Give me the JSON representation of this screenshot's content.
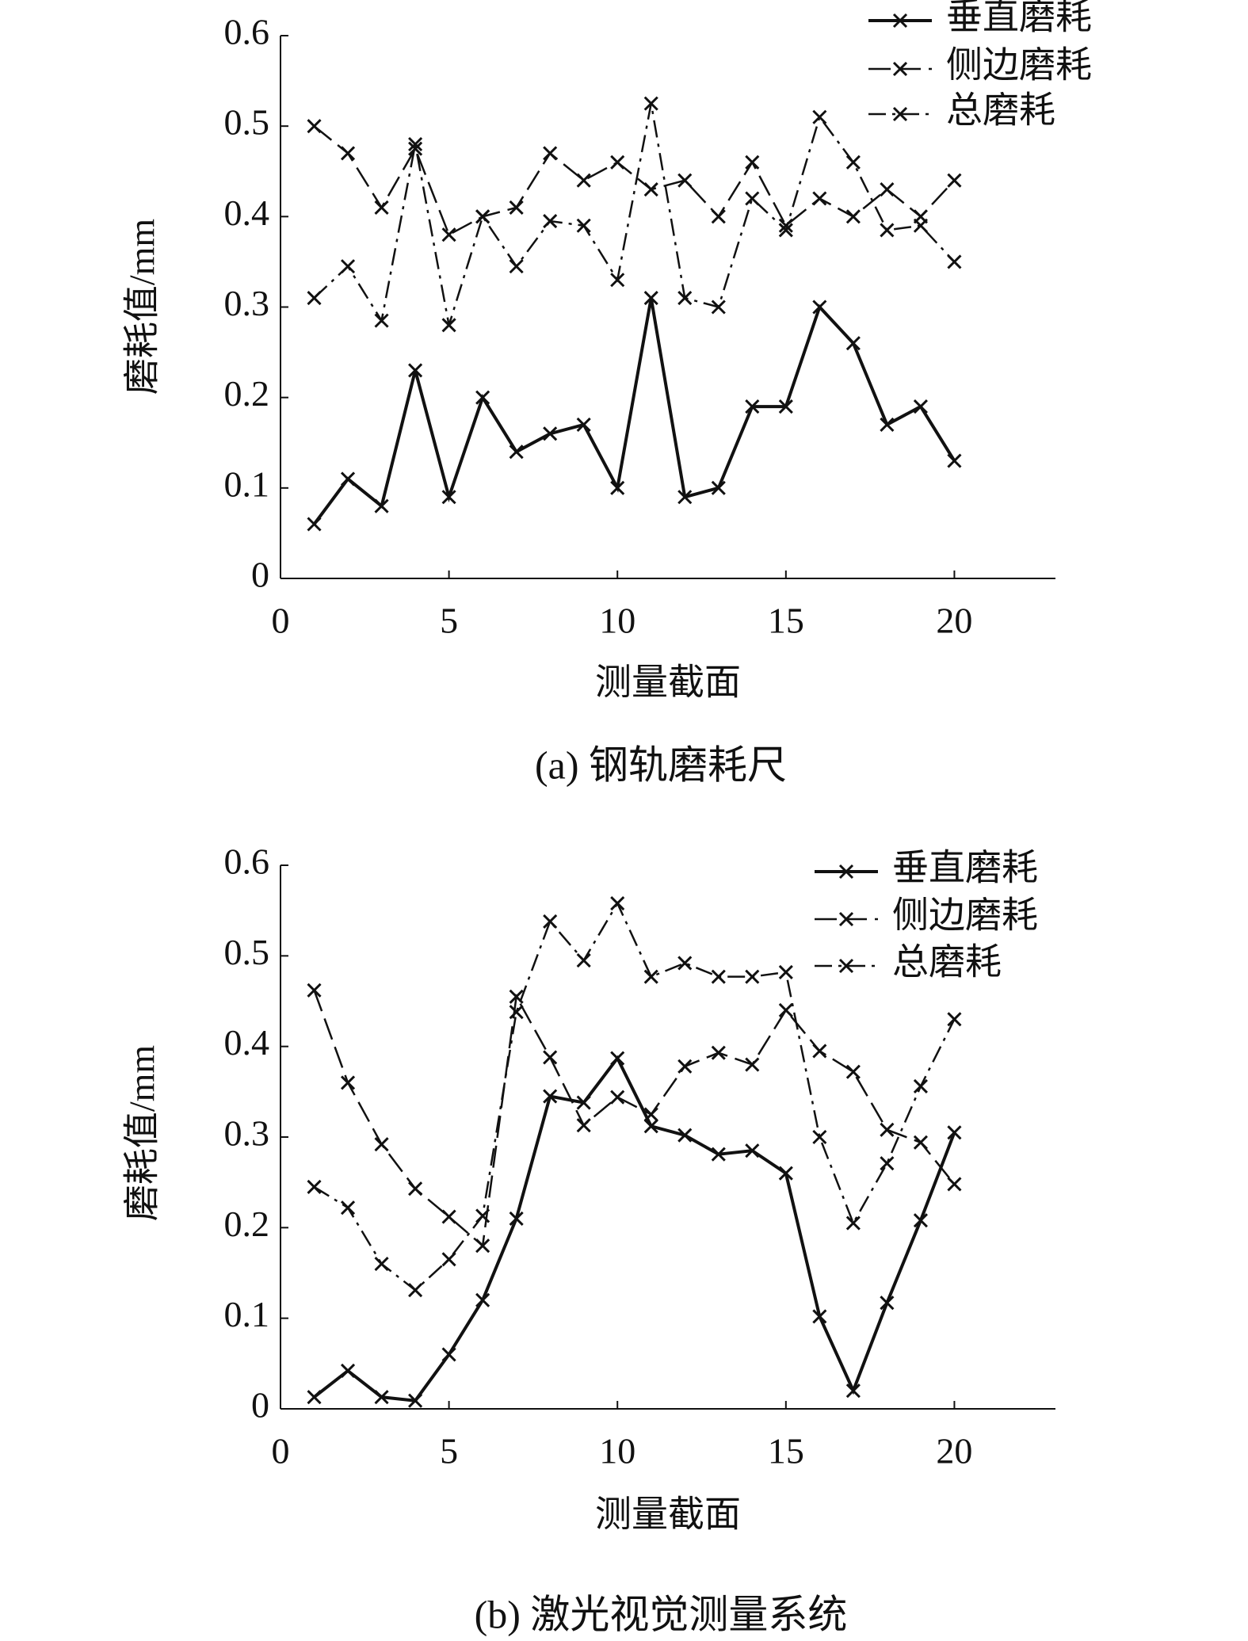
{
  "chart_data": [
    {
      "type": "line",
      "caption": "(a) 钢轨磨耗尺",
      "xlabel": "测量截面",
      "ylabel": "磨耗值/mm",
      "x": [
        1,
        2,
        3,
        4,
        5,
        6,
        7,
        8,
        9,
        10,
        11,
        12,
        13,
        14,
        15,
        16,
        17,
        18,
        19,
        20
      ],
      "xlim": [
        0,
        23
      ],
      "xticks": [
        0,
        5,
        10,
        15,
        20
      ],
      "ylim": [
        0,
        0.6
      ],
      "yticks": [
        0,
        0.1,
        0.2,
        0.3,
        0.4,
        0.5,
        0.6
      ],
      "series": [
        {
          "name": "垂直磨耗",
          "color": "#111111",
          "line_style": "solid",
          "values": [
            0.06,
            0.11,
            0.08,
            0.23,
            0.09,
            0.2,
            0.14,
            0.16,
            0.17,
            0.1,
            0.31,
            0.09,
            0.1,
            0.19,
            0.19,
            0.3,
            0.26,
            0.17,
            0.19,
            0.13
          ]
        },
        {
          "name": "侧边磨耗",
          "color": "#111111",
          "line_style": "dashed",
          "values": [
            0.5,
            0.47,
            0.41,
            0.475,
            0.38,
            0.4,
            0.41,
            0.47,
            0.44,
            0.46,
            0.43,
            0.44,
            0.4,
            0.46,
            0.39,
            0.42,
            0.4,
            0.43,
            0.4,
            0.44
          ]
        },
        {
          "name": "总磨耗",
          "color": "#111111",
          "line_style": "dashdot",
          "values": [
            0.31,
            0.345,
            0.285,
            0.48,
            0.28,
            0.4,
            0.345,
            0.395,
            0.39,
            0.33,
            0.525,
            0.31,
            0.3,
            0.42,
            0.385,
            0.51,
            0.46,
            0.385,
            0.39,
            0.35
          ]
        }
      ]
    },
    {
      "type": "line",
      "caption": "(b) 激光视觉测量系统",
      "xlabel": "测量截面",
      "ylabel": "磨耗值/mm",
      "x": [
        1,
        2,
        3,
        4,
        5,
        6,
        7,
        8,
        9,
        10,
        11,
        12,
        13,
        14,
        15,
        16,
        17,
        18,
        19,
        20
      ],
      "xlim": [
        0,
        23
      ],
      "xticks": [
        0,
        5,
        10,
        15,
        20
      ],
      "ylim": [
        0,
        0.6
      ],
      "yticks": [
        0,
        0.1,
        0.2,
        0.3,
        0.4,
        0.5,
        0.6
      ],
      "series": [
        {
          "name": "垂直磨耗",
          "color": "#111111",
          "line_style": "solid",
          "values": [
            0.013,
            0.042,
            0.013,
            0.009,
            0.06,
            0.12,
            0.21,
            0.345,
            0.338,
            0.387,
            0.312,
            0.302,
            0.281,
            0.285,
            0.26,
            0.102,
            0.02,
            0.117,
            0.208,
            0.305
          ]
        },
        {
          "name": "侧边磨耗",
          "color": "#111111",
          "line_style": "dashed",
          "values": [
            0.462,
            0.36,
            0.292,
            0.243,
            0.212,
            0.18,
            0.455,
            0.388,
            0.313,
            0.344,
            0.325,
            0.378,
            0.393,
            0.38,
            0.44,
            0.395,
            0.372,
            0.308,
            0.294,
            0.248
          ]
        },
        {
          "name": "总磨耗",
          "color": "#111111",
          "line_style": "dashdot",
          "values": [
            0.245,
            0.222,
            0.16,
            0.131,
            0.165,
            0.213,
            0.438,
            0.538,
            0.495,
            0.558,
            0.477,
            0.492,
            0.477,
            0.477,
            0.482,
            0.3,
            0.205,
            0.271,
            0.356,
            0.43
          ]
        }
      ]
    }
  ]
}
